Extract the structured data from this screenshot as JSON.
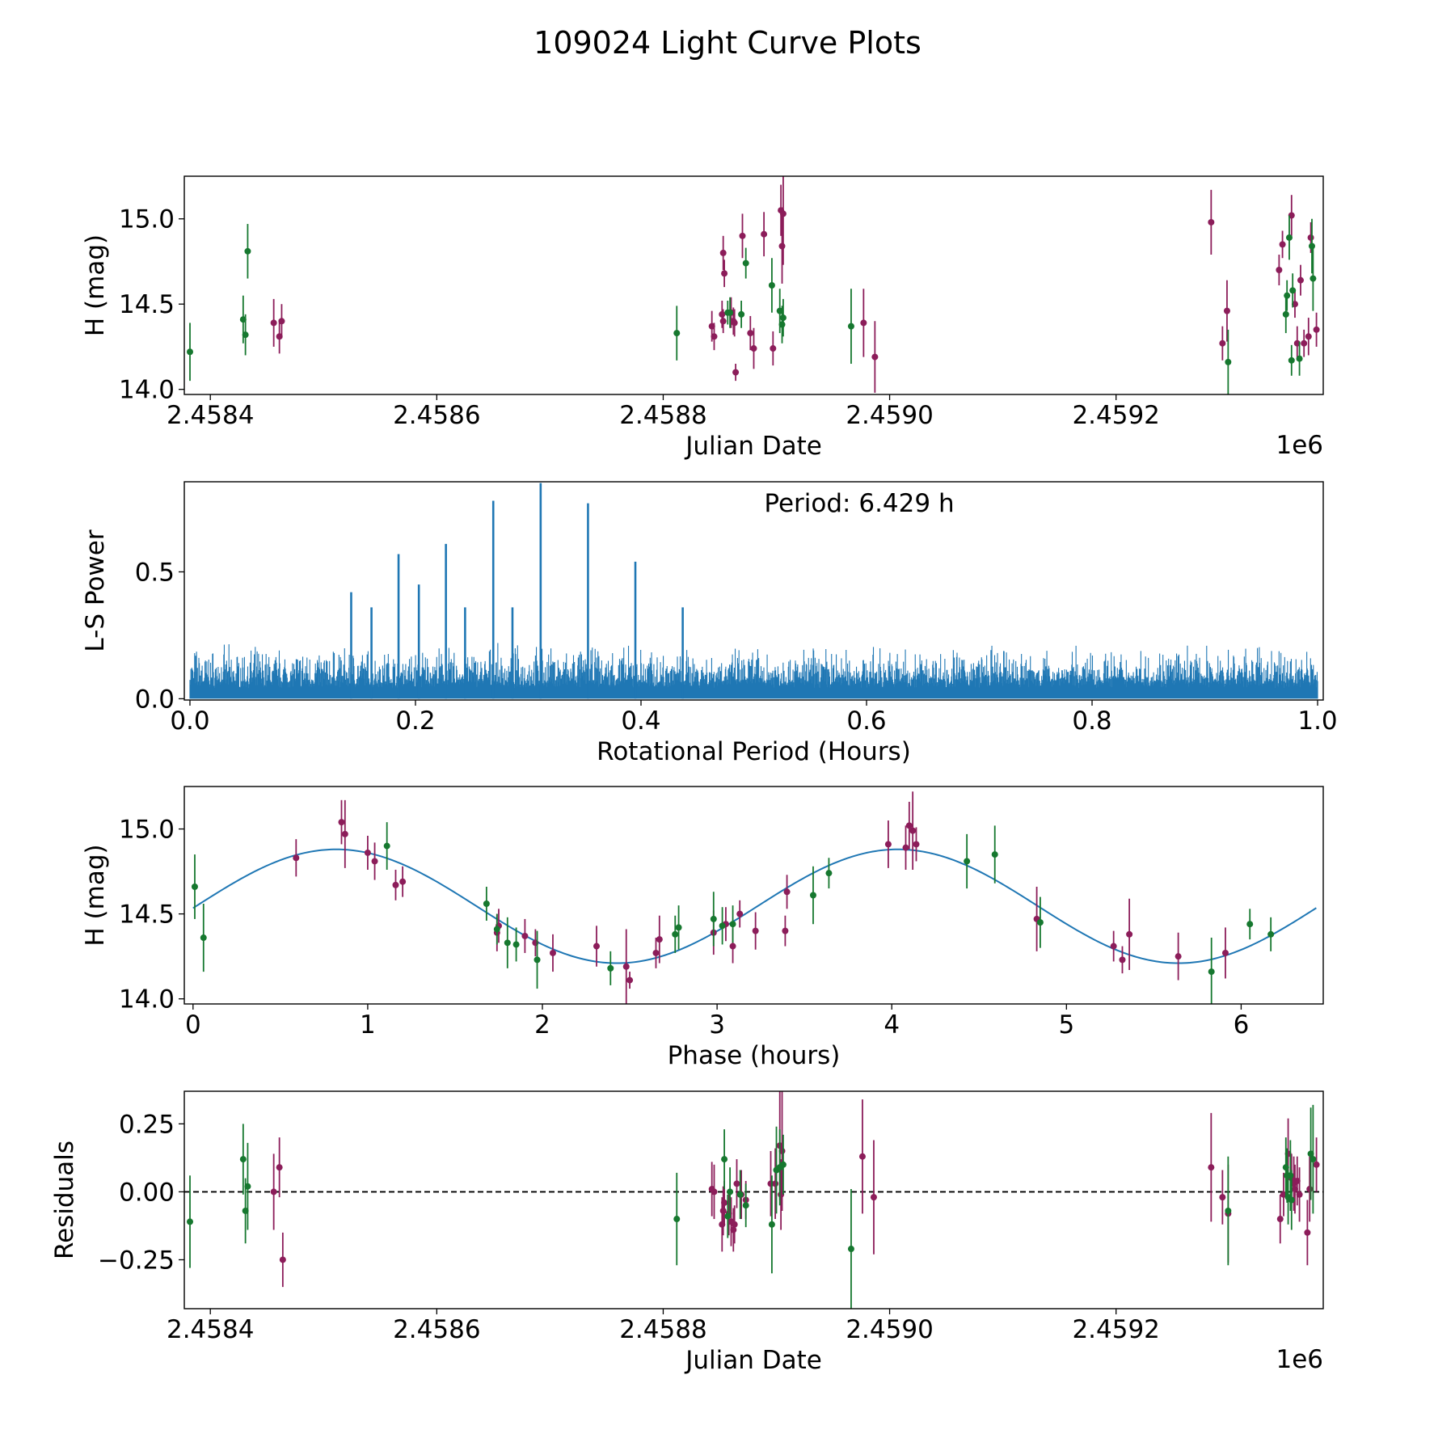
{
  "figure_title": "109024 Light Curve Plots",
  "colors": {
    "series_a": "#8c1d5a",
    "series_b": "#16782f",
    "curve": "#1f77b4"
  },
  "chart_data": [
    {
      "id": "lightcurve",
      "type": "scatter",
      "xlabel": "Julian Date",
      "ylabel": "H (mag)",
      "x_offset_label": "1e6",
      "xlim": [
        2.458377,
        2.459383
      ],
      "ylim": [
        13.97,
        15.25
      ],
      "xticks": [
        2.4584,
        2.4586,
        2.4588,
        2.459,
        2.4592
      ],
      "xtick_labels": [
        "2.4584",
        "2.4586",
        "2.4588",
        "2.4590",
        "2.4592"
      ],
      "yticks": [
        14.0,
        14.5,
        15.0
      ],
      "ytick_labels": [
        "14.0",
        "14.5",
        "15.0"
      ],
      "series": [
        {
          "name": "purple",
          "color": "#8c1d5a",
          "x": [
            2.458456,
            2.458461,
            2.458463,
            2.458843,
            2.458845,
            2.458852,
            2.458853,
            2.458854,
            2.458853,
            2.45886,
            2.458862,
            2.458864,
            2.458863,
            2.45887,
            2.458877,
            2.45888,
            2.458889,
            2.458897,
            2.458904,
            2.458905,
            2.458906,
            2.458977,
            2.458987,
            2.459284,
            2.459294,
            2.459298,
            2.459344,
            2.459347,
            2.459355,
            2.459358,
            2.45936,
            2.459363,
            2.459366,
            2.45937,
            2.459372,
            2.459377
          ],
          "y": [
            14.39,
            14.31,
            14.4,
            14.37,
            14.31,
            14.44,
            14.4,
            14.68,
            14.8,
            14.45,
            14.4,
            14.1,
            14.39,
            14.9,
            14.33,
            14.24,
            14.91,
            14.24,
            15.05,
            14.84,
            15.03,
            14.39,
            14.19,
            14.98,
            14.27,
            14.46,
            14.7,
            14.85,
            15.02,
            14.5,
            14.27,
            14.64,
            14.27,
            14.31,
            14.89,
            14.35
          ],
          "err": [
            0.14,
            0.1,
            0.1,
            0.09,
            0.08,
            0.08,
            0.07,
            0.08,
            0.1,
            0.09,
            0.08,
            0.05,
            0.08,
            0.13,
            0.1,
            0.12,
            0.13,
            0.1,
            0.15,
            0.22,
            0.3,
            0.2,
            0.21,
            0.19,
            0.1,
            0.18,
            0.09,
            0.08,
            0.12,
            0.08,
            0.1,
            0.09,
            0.08,
            0.11,
            0.09,
            0.1
          ]
        },
        {
          "name": "green",
          "color": "#16782f",
          "x": [
            2.458382,
            2.458429,
            2.458431,
            2.458433,
            2.458812,
            2.458857,
            2.458859,
            2.458869,
            2.458873,
            2.458896,
            2.458903,
            2.458905,
            2.458906,
            2.458966,
            2.459299,
            2.45935,
            2.459351,
            2.459353,
            2.459355,
            2.459356,
            2.459362,
            2.459373,
            2.459374
          ],
          "y": [
            14.22,
            14.41,
            14.32,
            14.81,
            14.33,
            14.45,
            14.45,
            14.44,
            14.74,
            14.61,
            14.46,
            14.38,
            14.42,
            14.37,
            14.16,
            14.44,
            14.55,
            14.89,
            14.17,
            14.58,
            14.18,
            14.84,
            14.65
          ],
          "err": [
            0.17,
            0.14,
            0.12,
            0.16,
            0.16,
            0.07,
            0.09,
            0.08,
            0.09,
            0.16,
            0.13,
            0.11,
            0.11,
            0.22,
            0.19,
            0.11,
            0.09,
            0.13,
            0.09,
            0.1,
            0.1,
            0.16,
            0.19
          ]
        }
      ]
    },
    {
      "id": "periodogram",
      "type": "line",
      "xlabel": "Rotational Period (Hours)",
      "ylabel": "L-S Power",
      "annotation": "Period: 6.429 h",
      "xlim": [
        -0.005,
        1.005
      ],
      "ylim": [
        -0.005,
        0.855
      ],
      "xticks": [
        0.0,
        0.2,
        0.4,
        0.6,
        0.8,
        1.0
      ],
      "xtick_labels": [
        "0.0",
        "0.2",
        "0.4",
        "0.6",
        "0.8",
        "1.0"
      ],
      "yticks": [
        0.0,
        0.5
      ],
      "ytick_labels": [
        "0.0",
        "0.5"
      ],
      "noise_level": 0.22,
      "peaks": [
        {
          "x": 0.143,
          "y": 0.42
        },
        {
          "x": 0.161,
          "y": 0.36
        },
        {
          "x": 0.185,
          "y": 0.57
        },
        {
          "x": 0.203,
          "y": 0.45
        },
        {
          "x": 0.227,
          "y": 0.61
        },
        {
          "x": 0.244,
          "y": 0.36
        },
        {
          "x": 0.269,
          "y": 0.78
        },
        {
          "x": 0.286,
          "y": 0.36
        },
        {
          "x": 0.311,
          "y": 0.85
        },
        {
          "x": 0.353,
          "y": 0.77
        },
        {
          "x": 0.395,
          "y": 0.54
        },
        {
          "x": 0.437,
          "y": 0.36
        }
      ]
    },
    {
      "id": "phased",
      "type": "scatter",
      "xlabel": "Phase (hours)",
      "ylabel": "H (mag)",
      "xlim": [
        -0.05,
        6.47
      ],
      "ylim": [
        13.97,
        15.25
      ],
      "xticks": [
        0,
        1,
        2,
        3,
        4,
        5,
        6
      ],
      "xtick_labels": [
        "0",
        "1",
        "2",
        "3",
        "4",
        "5",
        "6"
      ],
      "yticks": [
        14.0,
        14.5,
        15.0
      ],
      "ytick_labels": [
        "14.0",
        "14.5",
        "15.0"
      ],
      "fit": {
        "mean": 14.545,
        "amplitude": 0.335,
        "period_hours": 3.2145,
        "phase_of_max": 0.82
      },
      "series": [
        {
          "name": "purple",
          "color": "#8c1d5a",
          "x": [
            0.59,
            0.85,
            0.87,
            1.0,
            1.04,
            1.16,
            1.2,
            1.74,
            1.75,
            1.9,
            1.96,
            2.06,
            2.31,
            2.48,
            2.5,
            2.65,
            2.67,
            2.98,
            3.05,
            3.09,
            3.13,
            3.22,
            3.39,
            3.4,
            3.98,
            4.08,
            4.1,
            4.12,
            4.14,
            4.83,
            5.27,
            5.32,
            5.36,
            5.64,
            5.91
          ],
          "y": [
            14.83,
            15.04,
            14.97,
            14.86,
            14.81,
            14.67,
            14.69,
            14.39,
            14.43,
            14.37,
            14.33,
            14.27,
            14.31,
            14.19,
            14.11,
            14.27,
            14.35,
            14.39,
            14.44,
            14.31,
            14.5,
            14.4,
            14.4,
            14.63,
            14.91,
            14.89,
            15.02,
            14.99,
            14.91,
            14.47,
            14.31,
            14.23,
            14.38,
            14.25,
            14.27
          ],
          "err": [
            0.11,
            0.13,
            0.2,
            0.1,
            0.11,
            0.09,
            0.09,
            0.11,
            0.1,
            0.1,
            0.08,
            0.11,
            0.12,
            0.22,
            0.05,
            0.09,
            0.14,
            0.13,
            0.1,
            0.1,
            0.08,
            0.11,
            0.09,
            0.1,
            0.14,
            0.13,
            0.14,
            0.23,
            0.1,
            0.19,
            0.09,
            0.08,
            0.21,
            0.14,
            0.15
          ]
        },
        {
          "name": "green",
          "color": "#16782f",
          "x": [
            0.01,
            0.06,
            1.11,
            1.68,
            1.74,
            1.8,
            1.85,
            1.97,
            2.39,
            2.76,
            2.78,
            2.98,
            3.03,
            3.09,
            3.55,
            3.64,
            4.43,
            4.59,
            4.85,
            5.83,
            6.05,
            6.17
          ],
          "y": [
            14.66,
            14.36,
            14.9,
            14.56,
            14.41,
            14.33,
            14.32,
            14.23,
            14.18,
            14.38,
            14.42,
            14.47,
            14.43,
            14.44,
            14.61,
            14.74,
            14.81,
            14.85,
            14.45,
            14.16,
            14.44,
            14.38
          ],
          "err": [
            0.19,
            0.2,
            0.14,
            0.1,
            0.09,
            0.15,
            0.1,
            0.17,
            0.1,
            0.11,
            0.13,
            0.16,
            0.11,
            0.11,
            0.17,
            0.09,
            0.16,
            0.17,
            0.15,
            0.2,
            0.09,
            0.1
          ]
        }
      ]
    },
    {
      "id": "residuals",
      "type": "scatter",
      "xlabel": "Julian Date",
      "ylabel": "Residuals",
      "x_offset_label": "1e6",
      "xlim": [
        2.458377,
        2.459383
      ],
      "ylim": [
        -0.43,
        0.37
      ],
      "xticks": [
        2.4584,
        2.4586,
        2.4588,
        2.459,
        2.4592
      ],
      "xtick_labels": [
        "2.4584",
        "2.4586",
        "2.4588",
        "2.4590",
        "2.4592"
      ],
      "yticks": [
        -0.25,
        0.0,
        0.25
      ],
      "ytick_labels": [
        "−0.25",
        "0.00",
        "0.25"
      ],
      "reference_line": 0.0,
      "series": [
        {
          "name": "purple",
          "color": "#8c1d5a",
          "x": [
            2.458456,
            2.458461,
            2.458464,
            2.458843,
            2.458845,
            2.458852,
            2.458853,
            2.458854,
            2.458858,
            2.45886,
            2.458862,
            2.458863,
            2.458865,
            2.458869,
            2.458873,
            2.458895,
            2.458899,
            2.458903,
            2.458904,
            2.458905,
            2.458976,
            2.458986,
            2.459284,
            2.459294,
            2.459299,
            2.459345,
            2.459348,
            2.459352,
            2.459355,
            2.459357,
            2.459358,
            2.45936,
            2.459362,
            2.459369,
            2.459371,
            2.459377
          ],
          "y": [
            0.0,
            0.09,
            -0.25,
            0.01,
            0.0,
            -0.12,
            -0.07,
            -0.04,
            -0.08,
            -0.11,
            -0.14,
            -0.12,
            0.03,
            -0.01,
            -0.03,
            0.03,
            0.03,
            0.17,
            -0.01,
            0.15,
            0.13,
            -0.02,
            0.09,
            -0.02,
            -0.08,
            -0.1,
            -0.01,
            0.14,
            0.05,
            0.03,
            0.01,
            0.04,
            -0.01,
            -0.15,
            0.01,
            0.1
          ],
          "err": [
            0.14,
            0.11,
            0.1,
            0.1,
            0.1,
            0.1,
            0.09,
            0.08,
            0.08,
            0.09,
            0.08,
            0.07,
            0.09,
            0.09,
            0.07,
            0.12,
            0.13,
            0.2,
            0.13,
            0.22,
            0.21,
            0.21,
            0.2,
            0.1,
            0.18,
            0.09,
            0.08,
            0.13,
            0.09,
            0.1,
            0.09,
            0.09,
            0.1,
            0.12,
            0.12,
            0.1
          ]
        },
        {
          "name": "green",
          "color": "#16782f",
          "x": [
            2.458382,
            2.458429,
            2.458431,
            2.458433,
            2.458812,
            2.458854,
            2.458857,
            2.458859,
            2.458868,
            2.458873,
            2.458896,
            2.4589,
            2.458903,
            2.458906,
            2.458966,
            2.459299,
            2.45935,
            2.459351,
            2.459352,
            2.459354,
            2.459355,
            2.459372,
            2.459374
          ],
          "y": [
            -0.11,
            0.12,
            -0.07,
            0.02,
            -0.1,
            0.12,
            -0.09,
            0.0,
            -0.01,
            -0.05,
            -0.12,
            0.08,
            0.09,
            0.1,
            -0.21,
            -0.07,
            0.09,
            0.06,
            -0.02,
            0.06,
            -0.03,
            0.14,
            0.12
          ],
          "err": [
            0.17,
            0.13,
            0.12,
            0.16,
            0.17,
            0.11,
            0.08,
            0.09,
            0.09,
            0.08,
            0.18,
            0.16,
            0.14,
            0.11,
            0.22,
            0.2,
            0.11,
            0.1,
            0.1,
            0.13,
            0.11,
            0.17,
            0.2
          ]
        }
      ]
    }
  ]
}
